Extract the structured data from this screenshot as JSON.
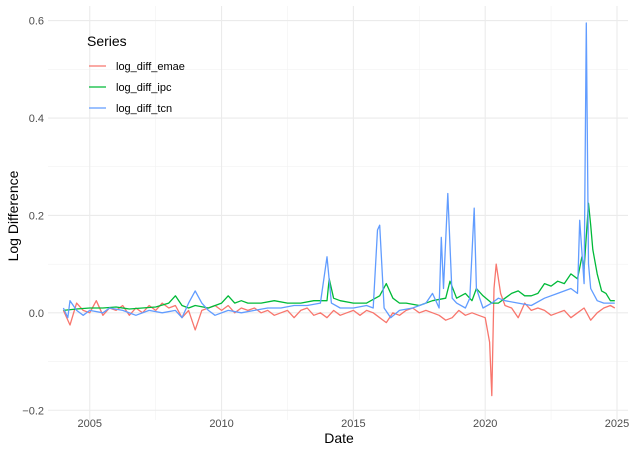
{
  "chart_data": {
    "type": "line",
    "xlabel": "Date",
    "ylabel": "Log Difference",
    "x_ticks": [
      "2005",
      "2010",
      "2015",
      "2020",
      "2025"
    ],
    "y_ticks": [
      "−0.2",
      "0.0",
      "0.2",
      "0.4",
      "0.6"
    ],
    "y_tick_values": [
      -0.2,
      0.0,
      0.2,
      0.4,
      0.6
    ],
    "xlim": [
      "2003-06",
      "2025-06"
    ],
    "ylim": [
      -0.22,
      0.63
    ],
    "grid": true,
    "legend": {
      "title": "Series",
      "position": "top-left"
    },
    "series": [
      {
        "name": "log_diff_emae",
        "color": "#F8766D",
        "points": [
          [
            "2004-01",
            0.005
          ],
          [
            "2004-04",
            -0.025
          ],
          [
            "2004-07",
            0.02
          ],
          [
            "2004-10",
            0.005
          ],
          [
            "2005-01",
            0.0
          ],
          [
            "2005-04",
            0.025
          ],
          [
            "2005-07",
            -0.005
          ],
          [
            "2005-10",
            0.01
          ],
          [
            "2006-01",
            0.005
          ],
          [
            "2006-04",
            0.015
          ],
          [
            "2006-07",
            -0.005
          ],
          [
            "2006-10",
            0.01
          ],
          [
            "2007-01",
            0.0
          ],
          [
            "2007-04",
            0.015
          ],
          [
            "2007-07",
            0.005
          ],
          [
            "2007-10",
            0.02
          ],
          [
            "2008-01",
            0.01
          ],
          [
            "2008-04",
            0.015
          ],
          [
            "2008-07",
            -0.01
          ],
          [
            "2008-10",
            0.005
          ],
          [
            "2009-01",
            -0.035
          ],
          [
            "2009-04",
            0.005
          ],
          [
            "2009-07",
            0.01
          ],
          [
            "2009-10",
            0.015
          ],
          [
            "2010-01",
            0.005
          ],
          [
            "2010-04",
            0.015
          ],
          [
            "2010-07",
            0.0
          ],
          [
            "2010-10",
            0.01
          ],
          [
            "2011-01",
            0.005
          ],
          [
            "2011-04",
            0.01
          ],
          [
            "2011-07",
            0.0
          ],
          [
            "2011-10",
            0.005
          ],
          [
            "2012-01",
            -0.005
          ],
          [
            "2012-04",
            0.0
          ],
          [
            "2012-07",
            0.005
          ],
          [
            "2012-10",
            -0.01
          ],
          [
            "2013-01",
            0.005
          ],
          [
            "2013-04",
            0.01
          ],
          [
            "2013-07",
            -0.005
          ],
          [
            "2013-10",
            0.0
          ],
          [
            "2014-01",
            -0.01
          ],
          [
            "2014-04",
            0.005
          ],
          [
            "2014-07",
            -0.005
          ],
          [
            "2014-10",
            0.0
          ],
          [
            "2015-01",
            0.005
          ],
          [
            "2015-04",
            -0.005
          ],
          [
            "2015-07",
            0.005
          ],
          [
            "2015-10",
            0.0
          ],
          [
            "2016-01",
            -0.01
          ],
          [
            "2016-04",
            -0.02
          ],
          [
            "2016-07",
            0.0
          ],
          [
            "2016-10",
            -0.005
          ],
          [
            "2017-01",
            0.005
          ],
          [
            "2017-04",
            0.01
          ],
          [
            "2017-07",
            0.0
          ],
          [
            "2017-10",
            0.005
          ],
          [
            "2018-01",
            0.0
          ],
          [
            "2018-04",
            -0.005
          ],
          [
            "2018-07",
            -0.015
          ],
          [
            "2018-10",
            -0.01
          ],
          [
            "2019-01",
            0.005
          ],
          [
            "2019-04",
            -0.005
          ],
          [
            "2019-07",
            0.0
          ],
          [
            "2019-10",
            -0.005
          ],
          [
            "2020-01",
            -0.01
          ],
          [
            "2020-03",
            -0.06
          ],
          [
            "2020-04",
            -0.17
          ],
          [
            "2020-05",
            0.05
          ],
          [
            "2020-06",
            0.1
          ],
          [
            "2020-08",
            0.04
          ],
          [
            "2020-10",
            0.015
          ],
          [
            "2021-01",
            0.01
          ],
          [
            "2021-04",
            -0.01
          ],
          [
            "2021-07",
            0.02
          ],
          [
            "2021-10",
            0.005
          ],
          [
            "2022-01",
            0.01
          ],
          [
            "2022-04",
            0.005
          ],
          [
            "2022-07",
            -0.005
          ],
          [
            "2022-10",
            0.0
          ],
          [
            "2023-01",
            0.005
          ],
          [
            "2023-04",
            -0.01
          ],
          [
            "2023-07",
            0.0
          ],
          [
            "2023-10",
            0.01
          ],
          [
            "2024-01",
            -0.015
          ],
          [
            "2024-04",
            0.0
          ],
          [
            "2024-07",
            0.01
          ],
          [
            "2024-10",
            0.015
          ],
          [
            "2024-12",
            0.01
          ]
        ]
      },
      {
        "name": "log_diff_ipc",
        "color": "#00BA38",
        "points": [
          [
            "2004-01",
            0.005
          ],
          [
            "2004-07",
            0.008
          ],
          [
            "2005-01",
            0.01
          ],
          [
            "2005-07",
            0.01
          ],
          [
            "2006-01",
            0.012
          ],
          [
            "2006-07",
            0.008
          ],
          [
            "2007-01",
            0.01
          ],
          [
            "2007-07",
            0.012
          ],
          [
            "2008-01",
            0.02
          ],
          [
            "2008-04",
            0.035
          ],
          [
            "2008-07",
            0.015
          ],
          [
            "2008-10",
            0.01
          ],
          [
            "2009-01",
            0.015
          ],
          [
            "2009-07",
            0.01
          ],
          [
            "2010-01",
            0.02
          ],
          [
            "2010-04",
            0.035
          ],
          [
            "2010-07",
            0.02
          ],
          [
            "2010-10",
            0.025
          ],
          [
            "2011-01",
            0.02
          ],
          [
            "2011-07",
            0.02
          ],
          [
            "2012-01",
            0.025
          ],
          [
            "2012-07",
            0.02
          ],
          [
            "2013-01",
            0.02
          ],
          [
            "2013-07",
            0.025
          ],
          [
            "2014-01",
            0.025
          ],
          [
            "2014-02",
            0.07
          ],
          [
            "2014-04",
            0.03
          ],
          [
            "2014-07",
            0.025
          ],
          [
            "2015-01",
            0.02
          ],
          [
            "2015-07",
            0.02
          ],
          [
            "2016-01",
            0.035
          ],
          [
            "2016-04",
            0.06
          ],
          [
            "2016-07",
            0.03
          ],
          [
            "2016-10",
            0.02
          ],
          [
            "2017-01",
            0.02
          ],
          [
            "2017-07",
            0.015
          ],
          [
            "2018-01",
            0.025
          ],
          [
            "2018-07",
            0.03
          ],
          [
            "2018-09",
            0.065
          ],
          [
            "2018-12",
            0.03
          ],
          [
            "2019-04",
            0.04
          ],
          [
            "2019-07",
            0.025
          ],
          [
            "2019-09",
            0.05
          ],
          [
            "2019-12",
            0.035
          ],
          [
            "2020-04",
            0.02
          ],
          [
            "2020-07",
            0.02
          ],
          [
            "2020-10",
            0.03
          ],
          [
            "2021-01",
            0.04
          ],
          [
            "2021-04",
            0.045
          ],
          [
            "2021-07",
            0.035
          ],
          [
            "2021-10",
            0.035
          ],
          [
            "2022-01",
            0.04
          ],
          [
            "2022-04",
            0.06
          ],
          [
            "2022-07",
            0.055
          ],
          [
            "2022-10",
            0.065
          ],
          [
            "2023-01",
            0.06
          ],
          [
            "2023-04",
            0.08
          ],
          [
            "2023-07",
            0.07
          ],
          [
            "2023-09",
            0.115
          ],
          [
            "2023-10",
            0.09
          ],
          [
            "2023-12",
            0.225
          ],
          [
            "2024-01",
            0.18
          ],
          [
            "2024-02",
            0.13
          ],
          [
            "2024-04",
            0.08
          ],
          [
            "2024-06",
            0.045
          ],
          [
            "2024-08",
            0.04
          ],
          [
            "2024-10",
            0.025
          ],
          [
            "2024-12",
            0.025
          ]
        ]
      },
      {
        "name": "log_diff_tcn",
        "color": "#619CFF",
        "points": [
          [
            "2004-01",
            0.01
          ],
          [
            "2004-03",
            -0.01
          ],
          [
            "2004-04",
            0.025
          ],
          [
            "2004-07",
            0.005
          ],
          [
            "2004-10",
            -0.005
          ],
          [
            "2005-01",
            0.005
          ],
          [
            "2005-07",
            0.0
          ],
          [
            "2005-10",
            0.01
          ],
          [
            "2006-04",
            0.005
          ],
          [
            "2006-10",
            -0.005
          ],
          [
            "2007-04",
            0.005
          ],
          [
            "2007-10",
            0.0
          ],
          [
            "2008-04",
            0.005
          ],
          [
            "2008-07",
            -0.01
          ],
          [
            "2008-10",
            0.02
          ],
          [
            "2009-01",
            0.045
          ],
          [
            "2009-04",
            0.02
          ],
          [
            "2009-07",
            0.005
          ],
          [
            "2009-10",
            -0.005
          ],
          [
            "2010-04",
            0.005
          ],
          [
            "2010-10",
            0.0
          ],
          [
            "2011-04",
            0.005
          ],
          [
            "2011-10",
            0.01
          ],
          [
            "2012-04",
            0.01
          ],
          [
            "2012-10",
            0.015
          ],
          [
            "2013-04",
            0.015
          ],
          [
            "2013-10",
            0.02
          ],
          [
            "2014-01",
            0.115
          ],
          [
            "2014-03",
            0.02
          ],
          [
            "2014-07",
            0.01
          ],
          [
            "2015-01",
            0.01
          ],
          [
            "2015-07",
            0.015
          ],
          [
            "2015-10",
            0.01
          ],
          [
            "2015-12",
            0.17
          ],
          [
            "2016-01",
            0.18
          ],
          [
            "2016-03",
            0.01
          ],
          [
            "2016-06",
            -0.01
          ],
          [
            "2016-10",
            0.005
          ],
          [
            "2017-04",
            0.01
          ],
          [
            "2017-10",
            0.02
          ],
          [
            "2018-01",
            0.04
          ],
          [
            "2018-04",
            0.01
          ],
          [
            "2018-05",
            0.155
          ],
          [
            "2018-06",
            0.05
          ],
          [
            "2018-08",
            0.245
          ],
          [
            "2018-10",
            0.03
          ],
          [
            "2018-12",
            0.02
          ],
          [
            "2019-04",
            0.01
          ],
          [
            "2019-06",
            0.03
          ],
          [
            "2019-08",
            0.215
          ],
          [
            "2019-09",
            0.05
          ],
          [
            "2019-12",
            0.01
          ],
          [
            "2020-04",
            0.02
          ],
          [
            "2020-07",
            0.03
          ],
          [
            "2020-10",
            0.025
          ],
          [
            "2021-04",
            0.02
          ],
          [
            "2021-10",
            0.015
          ],
          [
            "2022-04",
            0.03
          ],
          [
            "2022-10",
            0.04
          ],
          [
            "2023-04",
            0.05
          ],
          [
            "2023-07",
            0.04
          ],
          [
            "2023-08",
            0.19
          ],
          [
            "2023-10",
            0.06
          ],
          [
            "2023-11",
            0.595
          ],
          [
            "2023-12",
            0.1
          ],
          [
            "2024-01",
            0.05
          ],
          [
            "2024-04",
            0.025
          ],
          [
            "2024-07",
            0.02
          ],
          [
            "2024-10",
            0.02
          ],
          [
            "2024-12",
            0.02
          ]
        ]
      }
    ]
  }
}
